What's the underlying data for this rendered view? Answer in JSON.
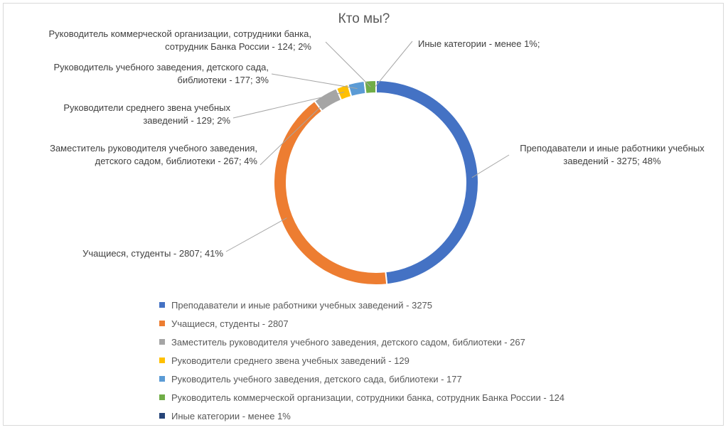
{
  "chart_data": {
    "type": "pie",
    "title": "Кто мы?",
    "slices": [
      {
        "legend": "Преподаватели и иные работники учебных заведений - 3275",
        "label_lines": [
          "Преподаватели и иные работники учебных",
          "заведений - 3275; 48%"
        ],
        "value": 3275,
        "percent": 48,
        "color": "#4472C4"
      },
      {
        "legend": "Учащиеся, студенты - 2807",
        "label_lines": [
          "Учащиеся, студенты - 2807; 41%"
        ],
        "value": 2807,
        "percent": 41,
        "color": "#ED7D31"
      },
      {
        "legend": "Заместитель руководителя учебного заведения, детского садом, библиотеки - 267",
        "label_lines": [
          "Заместитель руководителя учебного заведения,",
          "детского садом, библиотеки - 267; 4%"
        ],
        "value": 267,
        "percent": 4,
        "color": "#A5A5A5"
      },
      {
        "legend": "Руководители среднего звена учебных заведений - 129",
        "label_lines": [
          "Руководители среднего звена учебных",
          "заведений - 129; 2%"
        ],
        "value": 129,
        "percent": 2,
        "color": "#FFC000"
      },
      {
        "legend": "Руководитель учебного заведения, детского сада, библиотеки - 177",
        "label_lines": [
          "Руководитель учебного заведения, детского сада,",
          "библиотеки - 177; 3%"
        ],
        "value": 177,
        "percent": 3,
        "color": "#5B9BD5"
      },
      {
        "legend": "Руководитель коммерческой организации, сотрудники банка, сотрудник Банка России - 124",
        "label_lines": [
          "Руководитель коммерческой организации, сотрудники банка,",
          "сотрудник Банка России - 124; 2%"
        ],
        "value": 124,
        "percent": 2,
        "color": "#70AD47"
      },
      {
        "legend": "Иные категории - менее 1%",
        "label_lines": [
          "Иные категории - менее 1%;"
        ],
        "value": null,
        "percent": null,
        "color": "#264478"
      }
    ],
    "legend_position": "bottom"
  }
}
